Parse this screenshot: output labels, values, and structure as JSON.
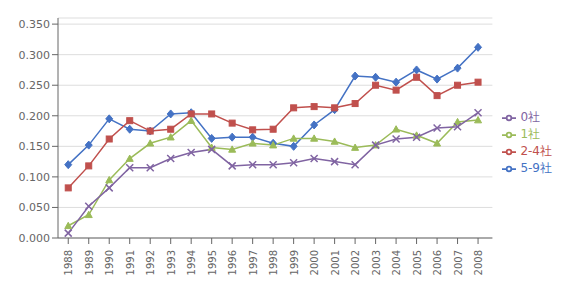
{
  "chart_data": {
    "type": "line",
    "x": [
      1988,
      1989,
      1990,
      1991,
      1992,
      1993,
      1994,
      1995,
      1996,
      1997,
      1998,
      1999,
      2000,
      2001,
      2002,
      2003,
      2004,
      2005,
      2006,
      2007,
      2008
    ],
    "series": [
      {
        "name": "5-9社",
        "color": "#4472C4",
        "marker": "diamond",
        "values": [
          0.12,
          0.152,
          0.195,
          0.178,
          0.175,
          0.203,
          0.205,
          0.163,
          0.165,
          0.165,
          0.155,
          0.15,
          0.185,
          0.21,
          0.265,
          0.263,
          0.255,
          0.275,
          0.26,
          0.278,
          0.312
        ]
      },
      {
        "name": "2-4社",
        "color": "#C0504D",
        "marker": "square",
        "values": [
          0.082,
          0.118,
          0.162,
          0.192,
          0.175,
          0.178,
          0.203,
          0.203,
          0.188,
          0.177,
          0.178,
          0.213,
          0.215,
          0.213,
          0.22,
          0.25,
          0.242,
          0.263,
          0.233,
          0.25,
          0.255
        ]
      },
      {
        "name": "1社",
        "color": "#9BBB59",
        "marker": "triangle",
        "values": [
          0.02,
          0.038,
          0.095,
          0.13,
          0.155,
          0.165,
          0.192,
          0.148,
          0.145,
          0.155,
          0.152,
          0.163,
          0.163,
          0.158,
          0.148,
          0.152,
          0.178,
          0.168,
          0.155,
          0.19,
          0.193
        ]
      },
      {
        "name": "0社",
        "color": "#8064A2",
        "marker": "x",
        "values": [
          0.008,
          0.052,
          0.082,
          0.115,
          0.115,
          0.13,
          0.14,
          0.145,
          0.118,
          0.12,
          0.12,
          0.123,
          0.13,
          0.125,
          0.12,
          0.152,
          0.162,
          0.165,
          0.18,
          0.182,
          0.205
        ]
      }
    ],
    "xlim": [
      1987.5,
      2008.7
    ],
    "xticks": [
      1988,
      1989,
      1990,
      1991,
      1992,
      1993,
      1994,
      1995,
      1996,
      1997,
      1998,
      1999,
      2000,
      2001,
      2002,
      2003,
      2004,
      2005,
      2006,
      2007,
      2008
    ],
    "ylim": [
      0.0,
      0.36
    ],
    "yticks": [
      {
        "value": 0.0,
        "label": "0.000"
      },
      {
        "value": 0.05,
        "label": "0.050"
      },
      {
        "value": 0.1,
        "label": "0.100"
      },
      {
        "value": 0.15,
        "label": "0.150"
      },
      {
        "value": 0.2,
        "label": "0.200"
      },
      {
        "value": 0.25,
        "label": "0.250"
      },
      {
        "value": 0.3,
        "label": "0.300"
      },
      {
        "value": 0.35,
        "label": "0.350"
      }
    ],
    "grid": true,
    "legend": "right"
  }
}
